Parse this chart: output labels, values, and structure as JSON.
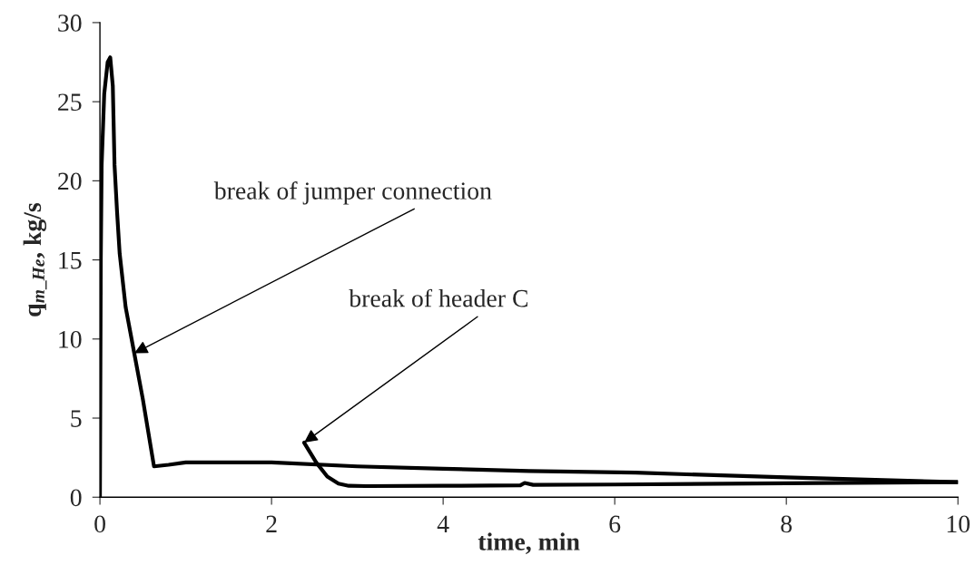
{
  "chart_data": {
    "type": "line",
    "xlabel": "time, min",
    "ylabel": "q$_{m_He}$, kg/s",
    "xlim": [
      0,
      10
    ],
    "xticks": [
      0,
      2,
      4,
      6,
      8,
      10
    ],
    "ylim": [
      0,
      30
    ],
    "yticks": [
      0,
      5,
      10,
      15,
      20,
      25,
      30
    ],
    "grid": false,
    "legend": false,
    "marker": "none",
    "line_style": "solid",
    "series": [
      {
        "color": "#000000",
        "x": [
          0,
          0.01,
          0.02,
          0.05,
          0.09,
          0.12,
          0.15,
          0.17,
          0.2,
          0.23,
          0.3,
          0.4,
          0.5,
          0.61,
          0.63,
          0.8,
          1.0,
          2.0,
          3.0,
          4.0,
          5.0,
          6.24,
          8.0,
          10.0
        ],
        "values": [
          0,
          15,
          21,
          25.5,
          27.5,
          27.8,
          26,
          21,
          18,
          15.4,
          12,
          9.1,
          6.2,
          2.6,
          1.95,
          2.05,
          2.2,
          2.2,
          1.95,
          1.8,
          1.65,
          1.55,
          1.25,
          0.95
        ]
      },
      {
        "color": "#000000",
        "x": [
          2.38,
          2.52,
          2.65,
          2.78,
          2.9,
          3.1,
          4.0,
          4.9,
          4.95,
          5.05,
          6.0,
          8.0,
          10.0
        ],
        "values": [
          3.45,
          2.2,
          1.3,
          0.86,
          0.72,
          0.7,
          0.72,
          0.75,
          0.9,
          0.78,
          0.8,
          0.88,
          0.95
        ]
      }
    ],
    "annotations": [
      {
        "text": "break of jumper connection",
        "x": 0.4,
        "y": 9.1
      },
      {
        "text": "break of header C",
        "x": 2.38,
        "y": 3.45
      }
    ]
  }
}
